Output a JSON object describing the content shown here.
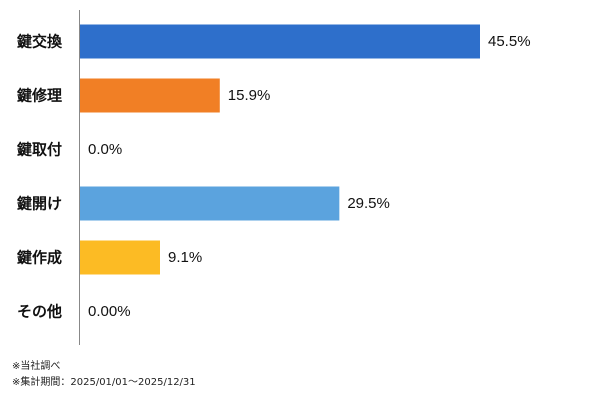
{
  "chart_data": {
    "type": "bar",
    "orientation": "horizontal",
    "categories": [
      "鍵交換",
      "鍵修理",
      "鍵取付",
      "鍵開け",
      "鍵作成",
      "その他"
    ],
    "values": [
      45.5,
      15.9,
      0.0,
      29.5,
      9.1,
      0.0
    ],
    "value_labels": [
      "45.5%",
      "15.9%",
      "0.0%",
      "29.5%",
      "9.1%",
      "0.00%"
    ],
    "colors": [
      "#2E6FCB",
      "#F17F25",
      "#9E9E9E",
      "#5BA3DE",
      "#FCBB24",
      "#9E9E9E"
    ],
    "xlim": [
      0,
      50
    ],
    "grid": false,
    "legend": "none",
    "title": "",
    "xlabel": "",
    "ylabel": ""
  },
  "notes": [
    "※当社調べ",
    "※集計期間：2025/01/01～2025/12/31"
  ]
}
